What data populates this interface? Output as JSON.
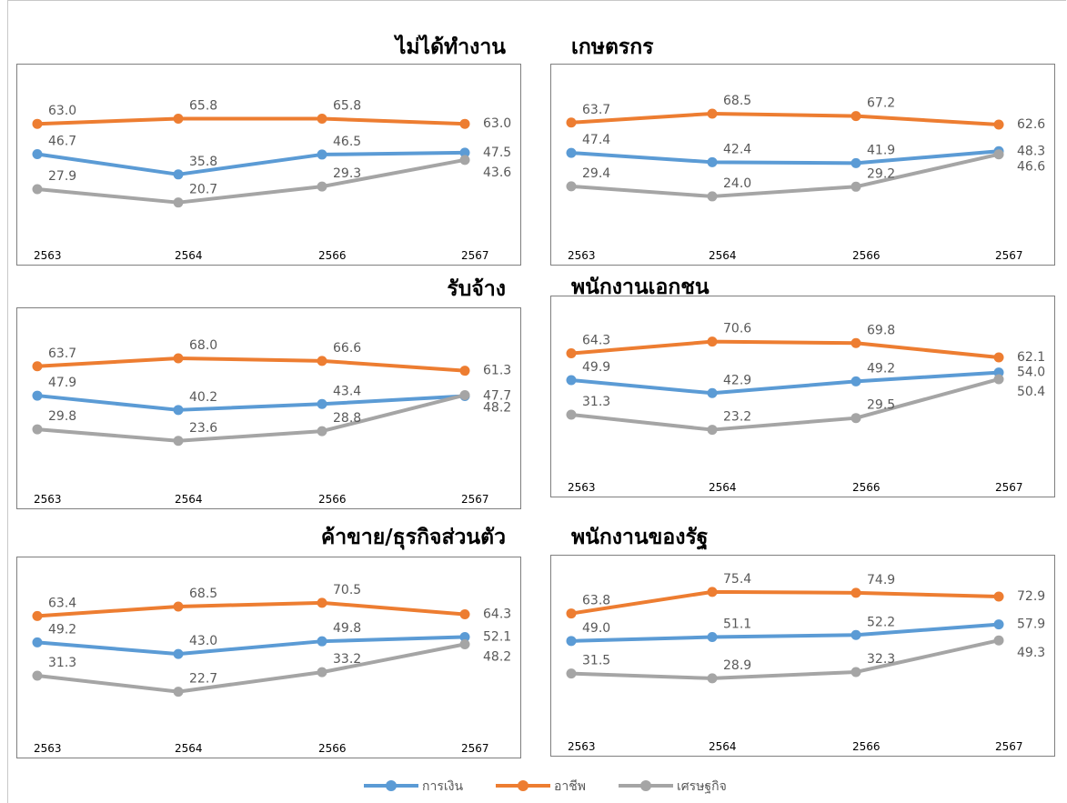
{
  "colors": {
    "finance": "#5b9bd5",
    "career": "#ed7d31",
    "economy": "#a5a5a5"
  },
  "legend": [
    {
      "key": "finance",
      "label": "การเงิน"
    },
    {
      "key": "career",
      "label": "อาชีพ"
    },
    {
      "key": "economy",
      "label": "เศรษฐกิจ"
    }
  ],
  "chart_data": [
    {
      "type": "line",
      "title": "ไม่ได้ทำงาน",
      "categories": [
        "2563",
        "2564",
        "2566",
        "2567"
      ],
      "series": [
        {
          "name": "การเงิน",
          "values": [
            46.7,
            35.8,
            46.5,
            47.5
          ]
        },
        {
          "name": "อาชีพ",
          "values": [
            63.0,
            65.8,
            65.8,
            63.0
          ]
        },
        {
          "name": "เศรษฐกิจ",
          "values": [
            27.9,
            20.7,
            29.3,
            43.6
          ]
        }
      ]
    },
    {
      "type": "line",
      "title": "เกษตรกร",
      "categories": [
        "2563",
        "2564",
        "2566",
        "2567"
      ],
      "series": [
        {
          "name": "การเงิน",
          "values": [
            47.4,
            42.4,
            41.9,
            48.3
          ]
        },
        {
          "name": "อาชีพ",
          "values": [
            63.7,
            68.5,
            67.2,
            62.6
          ]
        },
        {
          "name": "เศรษฐกิจ",
          "values": [
            29.4,
            24.0,
            29.2,
            46.6
          ]
        }
      ]
    },
    {
      "type": "line",
      "title": "รับจ้าง",
      "categories": [
        "2563",
        "2564",
        "2566",
        "2567"
      ],
      "series": [
        {
          "name": "การเงิน",
          "values": [
            47.9,
            40.2,
            43.4,
            47.7
          ]
        },
        {
          "name": "อาชีพ",
          "values": [
            63.7,
            68.0,
            66.6,
            61.3
          ]
        },
        {
          "name": "เศรษฐกิจ",
          "values": [
            29.8,
            23.6,
            28.8,
            48.2
          ]
        }
      ]
    },
    {
      "type": "line",
      "title": "พนักงานเอกชน",
      "categories": [
        "2563",
        "2564",
        "2566",
        "2567"
      ],
      "series": [
        {
          "name": "การเงิน",
          "values": [
            49.9,
            42.9,
            49.2,
            54.0
          ]
        },
        {
          "name": "อาชีพ",
          "values": [
            64.3,
            70.6,
            69.8,
            62.1
          ]
        },
        {
          "name": "เศรษฐกิจ",
          "values": [
            31.3,
            23.2,
            29.5,
            50.4
          ]
        }
      ]
    },
    {
      "type": "line",
      "title": "ค้าขาย/ธุรกิจส่วนตัว",
      "categories": [
        "2563",
        "2564",
        "2566",
        "2567"
      ],
      "series": [
        {
          "name": "การเงิน",
          "values": [
            49.2,
            43.0,
            49.8,
            52.1
          ]
        },
        {
          "name": "อาชีพ",
          "values": [
            63.4,
            68.5,
            70.5,
            64.3
          ]
        },
        {
          "name": "เศรษฐกิจ",
          "values": [
            31.3,
            22.7,
            33.2,
            48.2
          ]
        }
      ]
    },
    {
      "type": "line",
      "title": "พนักงานของรัฐ",
      "categories": [
        "2563",
        "2564",
        "2566",
        "2567"
      ],
      "series": [
        {
          "name": "การเงิน",
          "values": [
            49.0,
            51.1,
            52.2,
            57.9
          ]
        },
        {
          "name": "อาชีพ",
          "values": [
            63.8,
            75.4,
            74.9,
            72.9
          ]
        },
        {
          "name": "เศรษฐกิจ",
          "values": [
            31.5,
            28.9,
            32.3,
            49.3
          ]
        }
      ]
    }
  ]
}
